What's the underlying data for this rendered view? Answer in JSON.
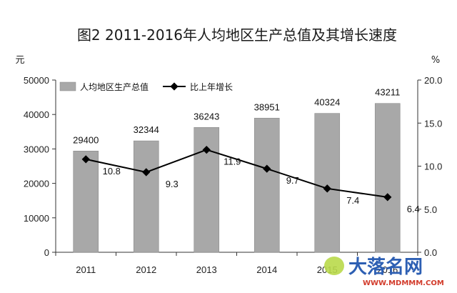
{
  "chart_data": {
    "type": "bar+line",
    "title": "图2   2011-2016年人均地区生产总值及其增长速度",
    "categories": [
      "2011",
      "2012",
      "2013",
      "2014",
      "2015",
      "2016"
    ],
    "series": [
      {
        "name": "人均地区生产总值",
        "type": "bar",
        "axis": "left",
        "color": "#a8a8a8",
        "values": [
          29400,
          32344,
          36243,
          38951,
          40324,
          43211
        ]
      },
      {
        "name": "比上年增长",
        "type": "line",
        "axis": "right",
        "color": "#000000",
        "values": [
          10.8,
          9.3,
          11.9,
          9.7,
          7.4,
          6.4
        ]
      }
    ],
    "left_axis": {
      "unit": "元",
      "min": 0,
      "max": 50000,
      "ticks": [
        "0",
        "10000",
        "20000",
        "30000",
        "40000",
        "50000"
      ]
    },
    "right_axis": {
      "unit": "%",
      "min": 0,
      "max": 20,
      "ticks": [
        "0.0",
        "5.0",
        "10.0",
        "15.0",
        "20.0"
      ]
    },
    "legend_position": "top-left",
    "grid": false
  },
  "watermark": {
    "text": "大落名网",
    "url": "WWW.MDMMM.COM"
  }
}
